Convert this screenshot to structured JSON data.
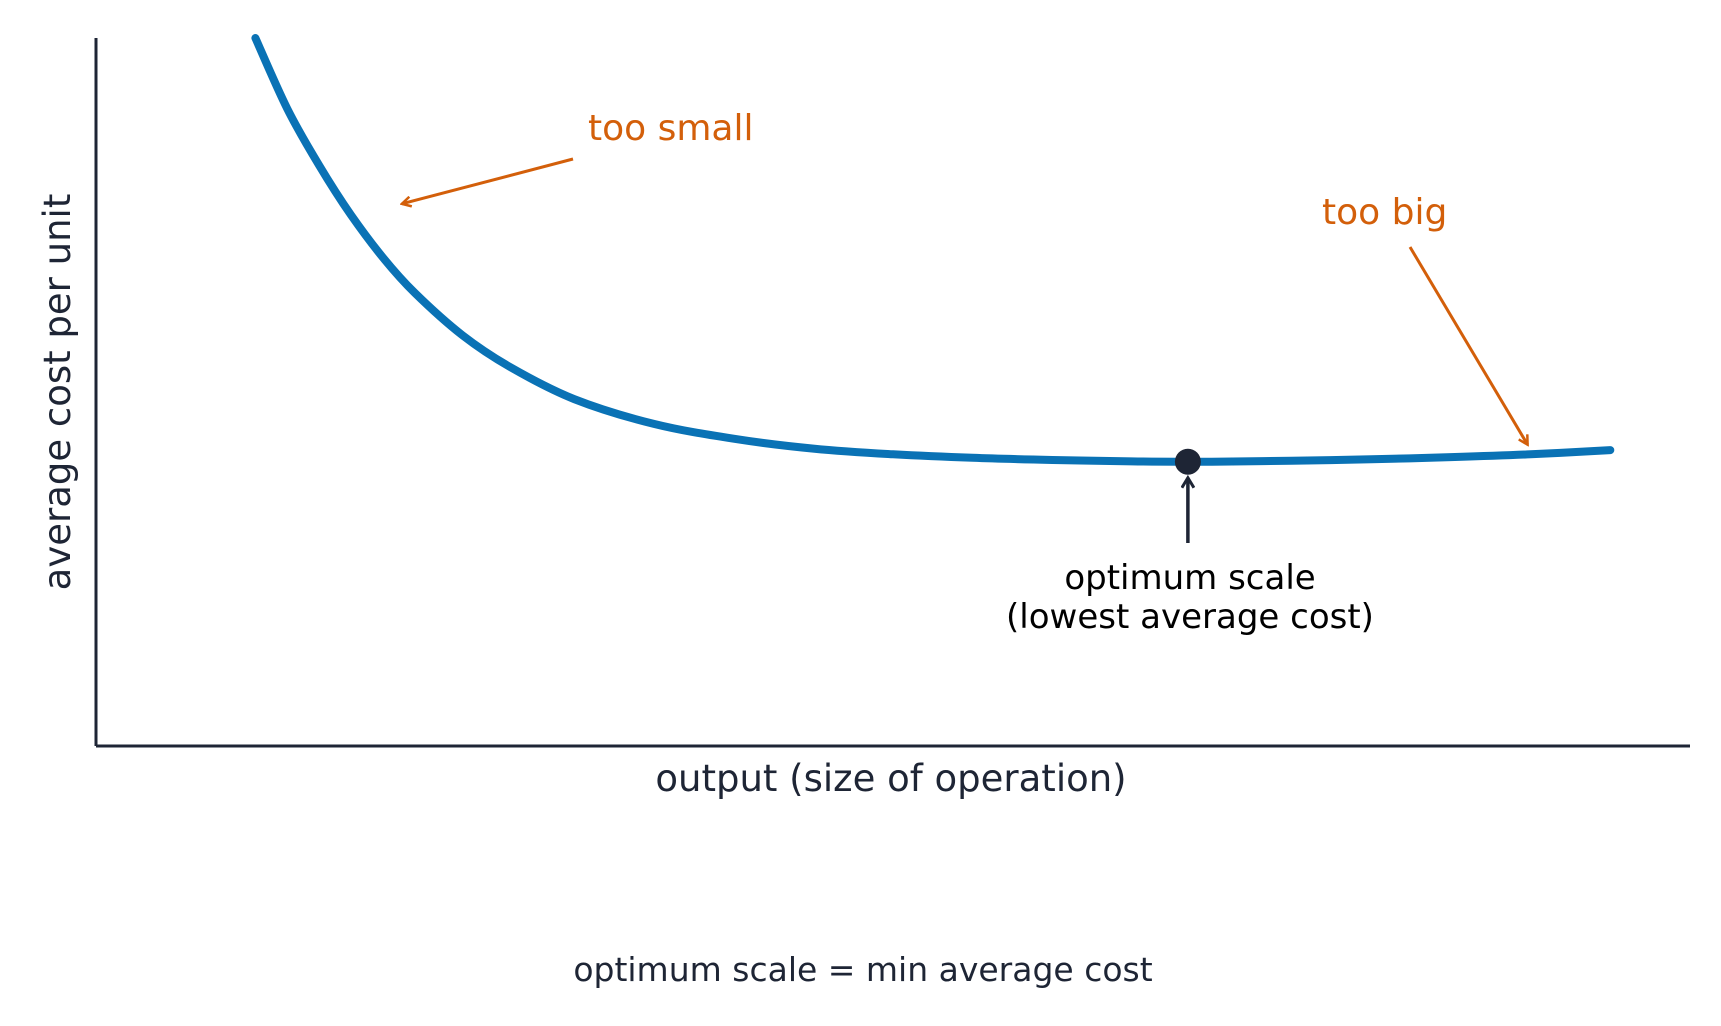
{
  "chart_data": {
    "type": "line",
    "title": "",
    "xlabel": "output (size of operation)",
    "ylabel": "average cost per unit",
    "xlim": [
      0,
      10
    ],
    "ylim": [
      0,
      10
    ],
    "grid": false,
    "legend": "none",
    "series": [
      {
        "x": [
          1.0,
          1.2,
          1.4,
          1.6,
          1.8,
          2.0,
          2.3,
          2.6,
          3.0,
          3.5,
          4.0,
          4.5,
          5.0,
          5.5,
          6.0,
          6.5,
          6.8,
          7.0,
          7.5,
          8.0,
          8.5,
          9.0,
          9.5
        ],
        "y": [
          10.0,
          9.0,
          8.2,
          7.5,
          6.9,
          6.4,
          5.8,
          5.35,
          4.9,
          4.55,
          4.34,
          4.2,
          4.12,
          4.07,
          4.04,
          4.02,
          4.015,
          4.015,
          4.03,
          4.05,
          4.08,
          4.12,
          4.18
        ]
      }
    ],
    "optimum_point": {
      "x": 6.85,
      "y": 4.015
    },
    "annotations": [
      {
        "text": "too small",
        "target": {
          "x": 1.9,
          "y": 7.7
        }
      },
      {
        "text": "too big",
        "target": {
          "x": 9.0,
          "y": 4.2
        }
      },
      {
        "lines": [
          "optimum scale",
          "(lowest average cost)"
        ],
        "target": {
          "x": 6.85,
          "y": 4.015
        }
      }
    ],
    "footer": "optimum scale = min average cost"
  },
  "colors": {
    "curve": "#0a72b5",
    "accent": "#d35f0a",
    "axis": "#1e2535",
    "text": "#1e2535"
  }
}
